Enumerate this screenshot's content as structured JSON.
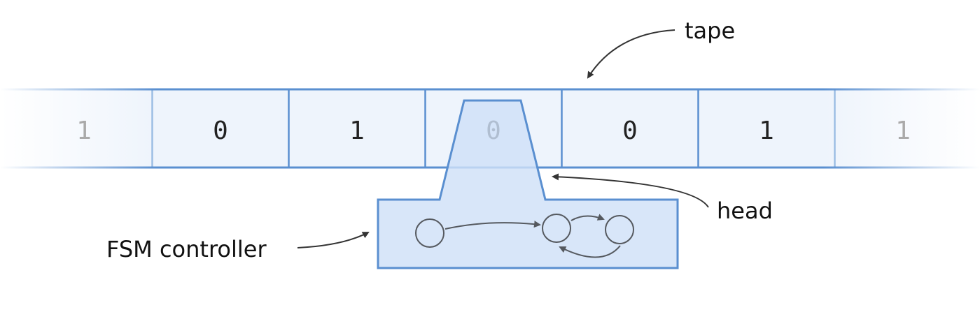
{
  "tape": {
    "cells": [
      "1",
      "0",
      "1",
      "0",
      "0",
      "1",
      "1"
    ],
    "head_index": 3
  },
  "labels": {
    "tape": "tape",
    "head": "head",
    "controller": "FSM controller"
  },
  "colors": {
    "tape_fill": "#eef4fc",
    "tape_stroke": "#5a8fd0",
    "head_fill": "#cfe1f8",
    "head_stroke": "#5a8fd0",
    "state_stroke": "#55595f",
    "digit": "#222222",
    "digit_faded": "#aaaaaa",
    "arrow": "#333333"
  }
}
